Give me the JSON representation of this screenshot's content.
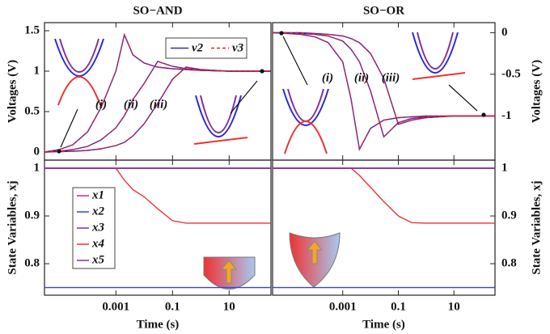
{
  "chart_data": [
    {
      "type": "line",
      "title": "SO−AND",
      "ylabel": "Voltages (V)",
      "yaxis": "left",
      "xscale": "log",
      "x": [
        3e-06,
        1e-05,
        3e-05,
        0.0001,
        0.0003,
        0.001,
        0.002,
        0.004,
        0.01,
        0.03,
        0.1,
        0.3,
        1,
        10,
        100,
        300
      ],
      "xlim": [
        3e-06,
        300
      ],
      "xticks": [
        0.001,
        0.1,
        10
      ],
      "ylim": [
        -0.1,
        1.6
      ],
      "yticks": [
        0,
        0.5,
        1,
        1.5
      ],
      "legend": "upper right",
      "annotations": [
        "(i)",
        "(ii)",
        "(iii)"
      ],
      "series": [
        {
          "name": "v2",
          "color": "#2a2ad8",
          "dash": false,
          "values": [
            [
              0,
              0.03,
              0.09,
              0.25,
              0.55,
              1.0,
              1.45,
              1.2,
              1.1,
              1.05,
              1.03,
              1.02,
              1.01,
              1.0,
              1.0,
              1.0
            ],
            [
              0,
              0.01,
              0.03,
              0.07,
              0.15,
              0.3,
              0.45,
              0.65,
              0.85,
              1.12,
              1.06,
              1.03,
              1.01,
              1.0,
              1.0,
              1.0
            ],
            [
              0,
              0.005,
              0.01,
              0.02,
              0.04,
              0.08,
              0.12,
              0.2,
              0.35,
              0.6,
              0.9,
              1.05,
              1.02,
              1.0,
              1.0,
              1.0
            ]
          ]
        },
        {
          "name": "v3",
          "color": "#e02020",
          "dash": true,
          "values": [
            [
              0,
              0.03,
              0.09,
              0.25,
              0.55,
              1.0,
              1.45,
              1.2,
              1.1,
              1.05,
              1.03,
              1.02,
              1.01,
              1.0,
              1.0,
              1.0
            ],
            [
              0,
              0.01,
              0.03,
              0.07,
              0.15,
              0.3,
              0.45,
              0.65,
              0.85,
              1.12,
              1.06,
              1.03,
              1.01,
              1.0,
              1.0,
              1.0
            ],
            [
              0,
              0.005,
              0.01,
              0.02,
              0.04,
              0.08,
              0.12,
              0.2,
              0.35,
              0.6,
              0.9,
              1.05,
              1.02,
              1.0,
              1.0,
              1.0
            ]
          ]
        }
      ]
    },
    {
      "type": "line",
      "title": "SO−OR",
      "ylabel": "Voltages (V)",
      "yaxis": "right",
      "xscale": "log",
      "x": [
        3e-06,
        1e-05,
        3e-05,
        0.0001,
        0.0003,
        0.001,
        0.002,
        0.004,
        0.01,
        0.03,
        0.1,
        0.3,
        1,
        10,
        100,
        300
      ],
      "xlim": [
        3e-06,
        300
      ],
      "xticks": [
        0.001,
        0.1,
        10
      ],
      "ylim": [
        -1.53,
        0.12
      ],
      "yticks": [
        0,
        -0.5,
        -1
      ],
      "annotations": [
        "(i)",
        "(ii)",
        "(iii)"
      ],
      "series": [
        {
          "color": "#2a2ad8",
          "dash": false,
          "values": [
            [
              0,
              -0.01,
              -0.02,
              -0.05,
              -0.12,
              -0.35,
              -0.8,
              -1.4,
              -1.15,
              -1.05,
              -1.02,
              -1.01,
              -1.0,
              -1.0,
              -1.0,
              -1.0
            ],
            [
              0,
              0,
              -0.01,
              -0.02,
              -0.04,
              -0.1,
              -0.2,
              -0.35,
              -0.7,
              -1.25,
              -1.08,
              -1.03,
              -1.01,
              -1.0,
              -1.0,
              -1.0
            ],
            [
              0,
              0,
              0,
              -0.01,
              -0.02,
              -0.04,
              -0.07,
              -0.12,
              -0.25,
              -0.55,
              -1.1,
              -1.05,
              -1.02,
              -1.0,
              -1.0,
              -1.0
            ]
          ]
        },
        {
          "color": "#e02020",
          "dash": true,
          "values": [
            [
              0,
              -0.01,
              -0.02,
              -0.05,
              -0.12,
              -0.35,
              -0.8,
              -1.4,
              -1.15,
              -1.05,
              -1.02,
              -1.01,
              -1.0,
              -1.0,
              -1.0,
              -1.0
            ],
            [
              0,
              0,
              -0.01,
              -0.02,
              -0.04,
              -0.1,
              -0.2,
              -0.35,
              -0.7,
              -1.25,
              -1.08,
              -1.03,
              -1.01,
              -1.0,
              -1.0,
              -1.0
            ],
            [
              0,
              0,
              0,
              -0.01,
              -0.02,
              -0.04,
              -0.07,
              -0.12,
              -0.25,
              -0.55,
              -1.1,
              -1.05,
              -1.02,
              -1.0,
              -1.0,
              -1.0
            ]
          ]
        }
      ]
    },
    {
      "type": "line",
      "ylabel": "State Variables, xj",
      "xlabel": "Time (s)",
      "yaxis": "left",
      "xscale": "log",
      "x": [
        3e-06,
        1e-05,
        3e-05,
        0.0001,
        0.0003,
        0.001,
        0.002,
        0.004,
        0.01,
        0.03,
        0.1,
        0.3,
        1,
        10,
        100,
        300
      ],
      "xlim": [
        3e-06,
        300
      ],
      "xticks": [
        0.001,
        0.1,
        10
      ],
      "ylim": [
        0.734,
        1.017
      ],
      "yticks": [
        0.8,
        0.9,
        1
      ],
      "legend": "center left",
      "series": [
        {
          "name": "x1",
          "color": "#c02890",
          "values": [
            1,
            1,
            1,
            1,
            1,
            1,
            1,
            1,
            1,
            1,
            1,
            1,
            1,
            1,
            1,
            1
          ]
        },
        {
          "name": "x2",
          "color": "#3344dd",
          "values": [
            0.75,
            0.75,
            0.75,
            0.75,
            0.75,
            0.75,
            0.75,
            0.75,
            0.75,
            0.75,
            0.75,
            0.75,
            0.75,
            0.75,
            0.75,
            0.75
          ]
        },
        {
          "name": "x3",
          "color": "#8030a8",
          "values": [
            1,
            1,
            1,
            1,
            1,
            1,
            1,
            1,
            1,
            1,
            1,
            1,
            1,
            1,
            1,
            1
          ]
        },
        {
          "name": "x4",
          "color": "#ee3333",
          "values": [
            1,
            1,
            1,
            1,
            1,
            1,
            0.975,
            0.955,
            0.94,
            0.915,
            0.89,
            0.885,
            0.885,
            0.885,
            0.885,
            0.885
          ]
        },
        {
          "name": "x5",
          "color": "#8030a8",
          "values": [
            1,
            1,
            1,
            1,
            1,
            1,
            1,
            1,
            1,
            1,
            1,
            1,
            1,
            1,
            1,
            1
          ]
        }
      ]
    },
    {
      "type": "line",
      "ylabel": "State Variables, xj",
      "xlabel": "Time (s)",
      "yaxis": "right",
      "xscale": "log",
      "x": [
        3e-06,
        1e-05,
        3e-05,
        0.0001,
        0.0003,
        0.001,
        0.002,
        0.004,
        0.01,
        0.03,
        0.1,
        0.3,
        1,
        10,
        100,
        300
      ],
      "xlim": [
        3e-06,
        300
      ],
      "xticks": [
        0.001,
        0.1,
        10
      ],
      "ylim": [
        0.734,
        1.017
      ],
      "yticks": [
        0.8,
        0.9,
        1
      ],
      "series": [
        {
          "color": "#c02890",
          "values": [
            1,
            1,
            1,
            1,
            1,
            1,
            1,
            1,
            1,
            1,
            1,
            1,
            1,
            1,
            1,
            1
          ]
        },
        {
          "color": "#3344dd",
          "values": [
            0.75,
            0.75,
            0.75,
            0.75,
            0.75,
            0.75,
            0.75,
            0.75,
            0.75,
            0.75,
            0.75,
            0.75,
            0.75,
            0.75,
            0.75,
            0.75
          ]
        },
        {
          "color": "#8030a8",
          "values": [
            1,
            1,
            1,
            1,
            1,
            1,
            1,
            1,
            1,
            1,
            1,
            1,
            1,
            1,
            1,
            1
          ]
        },
        {
          "color": "#ee3333",
          "values": [
            1,
            1,
            1,
            1,
            1,
            1,
            1,
            0.985,
            0.96,
            0.93,
            0.9,
            0.886,
            0.885,
            0.885,
            0.885,
            0.885
          ]
        },
        {
          "color": "#8030a8",
          "values": [
            1,
            1,
            1,
            1,
            1,
            1,
            1,
            1,
            1,
            1,
            1,
            1,
            1,
            1,
            1,
            1
          ]
        }
      ]
    }
  ]
}
